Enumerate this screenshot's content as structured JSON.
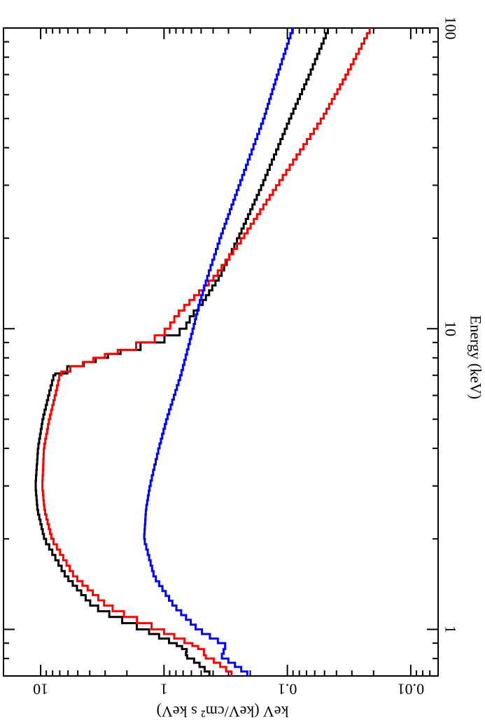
{
  "chart_data": {
    "type": "line",
    "orientation": "rotated-90",
    "xlabel": "Energy (keV)",
    "ylabel": "keV (keV/cm² s keV)",
    "x_scale": "log",
    "y_scale": "log",
    "xlim": [
      0.7,
      100
    ],
    "ylim": [
      0.006,
      20
    ],
    "x_major_ticks": [
      1,
      10,
      100
    ],
    "x_tick_labels": [
      "1",
      "10",
      "100"
    ],
    "y_major_ticks": [
      0.01,
      0.1,
      1,
      10
    ],
    "y_tick_labels": [
      "0.01",
      "0.1",
      "1",
      "10"
    ],
    "grid": false,
    "legend": "none",
    "series": [
      {
        "color": "#000000",
        "x": [
          0.7,
          0.75,
          0.8,
          0.82,
          0.84,
          0.86,
          0.88,
          0.9,
          1.0,
          1.1,
          1.2,
          1.3,
          1.5,
          2.0,
          2.5,
          3.0,
          4.0,
          5.0,
          6.0,
          7.0,
          7.1,
          7.5,
          8.0,
          8.5,
          9.0,
          9.5,
          10.0,
          11.0,
          11.5,
          12.0,
          15.0,
          20.0,
          30.0,
          50.0,
          70.0,
          100.0
        ],
        "y": [
          0.41,
          0.49,
          0.6,
          0.7,
          0.63,
          0.68,
          0.75,
          0.83,
          1.45,
          2.5,
          3.8,
          4.5,
          6.2,
          9.3,
          10.6,
          11.0,
          10.5,
          9.6,
          8.6,
          7.8,
          7.4,
          5.0,
          3.2,
          2.0,
          1.2,
          0.82,
          0.68,
          0.6,
          0.55,
          0.5,
          0.35,
          0.25,
          0.16,
          0.095,
          0.066,
          0.046
        ]
      },
      {
        "color": "#ff0000",
        "x": [
          0.7,
          0.75,
          0.8,
          0.82,
          0.84,
          0.86,
          0.88,
          0.9,
          1.0,
          1.1,
          1.2,
          1.3,
          1.5,
          2.0,
          2.5,
          3.0,
          4.0,
          5.0,
          6.0,
          7.0,
          7.2,
          7.5,
          8.0,
          8.5,
          9.0,
          9.5,
          10.0,
          10.5,
          11.0,
          12.0,
          15.0,
          20.0,
          30.0,
          50.0,
          70.0,
          100.0
        ],
        "y": [
          0.27,
          0.33,
          0.42,
          0.5,
          0.45,
          0.5,
          0.56,
          0.62,
          1.1,
          1.9,
          2.9,
          3.6,
          5.3,
          8.1,
          9.3,
          9.7,
          9.4,
          8.5,
          7.6,
          7.0,
          6.6,
          5.0,
          3.4,
          2.1,
          1.35,
          1.05,
          0.93,
          0.85,
          0.8,
          0.65,
          0.38,
          0.23,
          0.12,
          0.052,
          0.033,
          0.021
        ]
      },
      {
        "color": "#0000ff",
        "x": [
          0.7,
          0.75,
          0.8,
          0.83,
          0.86,
          0.9,
          1.0,
          1.2,
          1.5,
          2.0,
          2.5,
          3.0,
          4.0,
          5.0,
          7.0,
          10.0,
          12.0,
          15.0,
          20.0,
          30.0,
          50.0,
          70.0,
          100.0
        ],
        "y": [
          0.2,
          0.25,
          0.32,
          0.36,
          0.3,
          0.34,
          0.53,
          0.83,
          1.2,
          1.45,
          1.4,
          1.3,
          1.1,
          0.95,
          0.73,
          0.58,
          0.52,
          0.44,
          0.35,
          0.245,
          0.155,
          0.12,
          0.09
        ]
      }
    ]
  }
}
